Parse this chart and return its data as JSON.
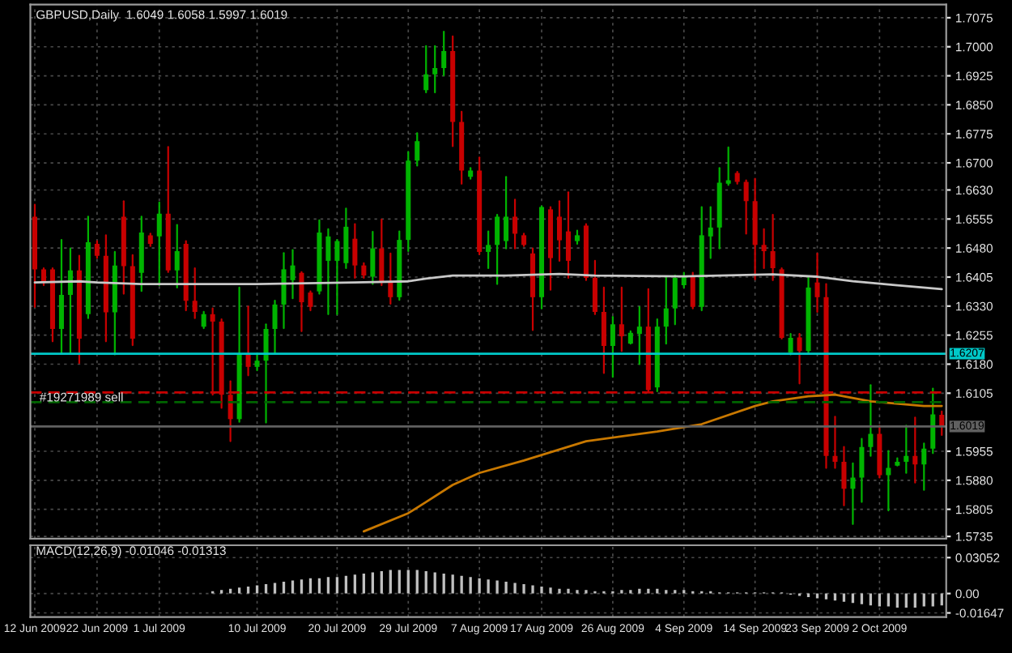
{
  "chart_data": [
    {
      "type": "candlestick",
      "title": "GBPUSD,Daily  1.6049 1.6058 1.5997 1.6019",
      "categories": [
        null,
        null,
        null,
        null,
        null,
        null,
        null,
        null,
        null,
        null,
        null,
        null,
        null,
        null,
        null,
        null,
        null,
        null,
        null,
        null,
        null,
        null,
        null,
        null,
        null,
        null,
        null,
        null,
        null,
        null,
        null,
        null,
        null,
        null,
        null,
        null,
        null,
        null,
        null,
        null,
        null,
        null,
        null,
        null,
        null,
        null,
        null,
        null,
        null,
        null,
        null,
        null,
        null,
        null,
        null,
        null,
        null,
        null,
        null,
        null,
        null,
        null,
        null,
        null,
        null,
        null,
        null,
        null,
        null,
        null,
        null,
        null,
        null,
        null,
        null,
        null,
        null,
        null,
        null,
        null,
        null,
        null,
        null,
        null,
        null,
        null,
        null,
        null,
        null,
        null,
        null,
        null,
        null,
        null,
        null,
        null,
        null,
        null,
        null,
        null,
        null,
        null,
        null
      ],
      "ohlc": [
        [
          1.6561,
          1.6592,
          1.6328,
          1.6425
        ],
        [
          1.6425,
          1.6428,
          1.6384,
          1.6391
        ],
        [
          1.6425,
          1.6428,
          1.6239,
          1.6271
        ],
        [
          1.6271,
          1.6501,
          1.6208,
          1.6359
        ],
        [
          1.6359,
          1.6479,
          1.6208,
          1.6422
        ],
        [
          1.6422,
          1.646,
          1.6183,
          1.6246
        ],
        [
          1.6309,
          1.6561,
          1.6299,
          1.6495
        ],
        [
          1.6491,
          1.6498,
          1.6454,
          1.646
        ],
        [
          1.646,
          1.6513,
          1.6239,
          1.6314
        ],
        [
          1.6314,
          1.647,
          1.6205,
          1.6435
        ],
        [
          1.6561,
          1.6601,
          1.6362,
          1.6433
        ],
        [
          1.6433,
          1.6462,
          1.6229,
          1.6246
        ],
        [
          1.6416,
          1.6561,
          1.6369,
          1.652
        ],
        [
          1.6513,
          1.6517,
          1.6485,
          1.6491
        ],
        [
          1.651,
          1.6598,
          1.6384,
          1.6569
        ],
        [
          1.6569,
          1.6741,
          1.6418,
          1.6422
        ],
        [
          1.6422,
          1.654,
          1.6378,
          1.6472
        ],
        [
          1.6491,
          1.6498,
          1.6319,
          1.6344
        ],
        [
          1.6344,
          1.6428,
          1.6299,
          1.6315
        ],
        [
          1.6277,
          1.6315,
          1.6273,
          1.6309
        ],
        [
          1.6309,
          1.6324,
          1.6101,
          1.629
        ],
        [
          1.629,
          1.6296,
          1.6067,
          1.6101
        ],
        [
          1.6101,
          1.6136,
          1.5981,
          1.6038
        ],
        [
          1.6038,
          1.6378,
          1.6031,
          1.6208
        ],
        [
          1.6208,
          1.6329,
          1.6151,
          1.6173
        ],
        [
          1.6173,
          1.6208,
          1.6164,
          1.6189
        ],
        [
          1.6189,
          1.6283,
          1.6029,
          1.6271
        ],
        [
          1.6271,
          1.6344,
          1.6208,
          1.6334
        ],
        [
          1.6334,
          1.6467,
          1.6273,
          1.6425
        ],
        [
          1.6397,
          1.6475,
          1.635,
          1.6435
        ],
        [
          1.6416,
          1.6418,
          1.6265,
          1.634
        ],
        [
          1.6365,
          1.6368,
          1.6319,
          1.6328
        ],
        [
          1.6368,
          1.6552,
          1.6362,
          1.652
        ],
        [
          1.6447,
          1.6529,
          1.6309,
          1.651
        ],
        [
          1.6447,
          1.6501,
          1.6309,
          1.6498
        ],
        [
          1.6441,
          1.6582,
          1.6428,
          1.6535
        ],
        [
          1.6504,
          1.6542,
          1.6403,
          1.6435
        ],
        [
          1.6435,
          1.6441,
          1.6403,
          1.6409
        ],
        [
          1.6406,
          1.6522,
          1.6387,
          1.6479
        ],
        [
          1.6479,
          1.6554,
          1.6384,
          1.6393
        ],
        [
          1.6393,
          1.6466,
          1.6336,
          1.6353
        ],
        [
          1.6353,
          1.6523,
          1.6346,
          1.6501
        ],
        [
          1.6501,
          1.6728,
          1.6472,
          1.6706
        ],
        [
          1.6706,
          1.6777,
          1.6693,
          1.6756
        ],
        [
          1.6888,
          1.7002,
          1.6882,
          1.6929
        ],
        [
          1.6929,
          1.7002,
          1.6882,
          1.6945
        ],
        [
          1.6945,
          1.7039,
          1.6926,
          1.6989
        ],
        [
          1.6989,
          1.7027,
          1.6743,
          1.6806
        ],
        [
          1.6806,
          1.6832,
          1.6646,
          1.668
        ],
        [
          1.6664,
          1.6687,
          1.6659,
          1.668
        ],
        [
          1.668,
          1.6714,
          1.6464,
          1.647
        ],
        [
          1.647,
          1.6523,
          1.6428,
          1.6488
        ],
        [
          1.6488,
          1.6566,
          1.6387,
          1.6561
        ],
        [
          1.6498,
          1.6664,
          1.6479,
          1.6561
        ],
        [
          1.6561,
          1.6605,
          1.6479,
          1.6517
        ],
        [
          1.6513,
          1.6517,
          1.6485,
          1.6488
        ],
        [
          1.6466,
          1.6479,
          1.6268,
          1.6353
        ],
        [
          1.6353,
          1.6588,
          1.6324,
          1.6586
        ],
        [
          1.658,
          1.6586,
          1.6372,
          1.6454
        ],
        [
          1.6561,
          1.6601,
          1.6447,
          1.65
        ],
        [
          1.6523,
          1.6624,
          1.6403,
          1.6447
        ],
        [
          1.6498,
          1.6525,
          1.6491,
          1.6513
        ],
        [
          1.6538,
          1.6542,
          1.6397,
          1.6403
        ],
        [
          1.6403,
          1.6447,
          1.6309,
          1.6315
        ],
        [
          1.6315,
          1.6378,
          1.6157,
          1.6227
        ],
        [
          1.6227,
          1.6302,
          1.6147,
          1.6283
        ],
        [
          1.6283,
          1.6378,
          1.6214,
          1.6252
        ],
        [
          1.6233,
          1.6265,
          1.6233,
          1.6261
        ],
        [
          1.6258,
          1.6328,
          1.618,
          1.6277
        ],
        [
          1.6277,
          1.6374,
          1.611,
          1.6113
        ],
        [
          1.612,
          1.6296,
          1.611,
          1.6277
        ],
        [
          1.6277,
          1.6407,
          1.6233,
          1.6324
        ],
        [
          1.6324,
          1.6409,
          1.6283,
          1.6403
        ],
        [
          1.6384,
          1.6416,
          1.6378,
          1.6409
        ],
        [
          1.6409,
          1.6416,
          1.6324,
          1.6328
        ],
        [
          1.6328,
          1.6586,
          1.6319,
          1.6513
        ],
        [
          1.651,
          1.6586,
          1.6454,
          1.6533
        ],
        [
          1.6533,
          1.6687,
          1.6479,
          1.6649
        ],
        [
          1.6646,
          1.674,
          1.6643,
          1.6655
        ],
        [
          1.6674,
          1.6677,
          1.6646,
          1.6651
        ],
        [
          1.6651,
          1.6655,
          1.6517,
          1.6601
        ],
        [
          1.6601,
          1.6659,
          1.6399,
          1.6488
        ],
        [
          1.6488,
          1.6529,
          1.6428,
          1.6472
        ],
        [
          1.6472,
          1.6566,
          1.6397,
          1.6428
        ],
        [
          1.6425,
          1.6428,
          1.6246,
          1.6248
        ],
        [
          1.621,
          1.6258,
          1.6205,
          1.6248
        ],
        [
          1.6249,
          1.6258,
          1.613,
          1.6214
        ],
        [
          1.6214,
          1.6403,
          1.621,
          1.6378
        ],
        [
          1.6391,
          1.6466,
          1.6315,
          1.6353
        ],
        [
          1.6353,
          1.6387,
          1.5912,
          1.5943
        ],
        [
          1.5943,
          1.6044,
          1.5912,
          1.5928
        ],
        [
          1.5928,
          1.5966,
          1.5815,
          1.5858
        ],
        [
          1.5858,
          1.5924,
          1.5767,
          1.5887
        ],
        [
          1.5887,
          1.5987,
          1.5824,
          1.5966
        ],
        [
          1.5966,
          1.6126,
          1.5943,
          1.6
        ],
        [
          1.6,
          1.6021,
          1.5887,
          1.5893
        ],
        [
          1.5893,
          1.5956,
          1.5802,
          1.5912
        ],
        [
          1.5918,
          1.5937,
          1.5918,
          1.5928
        ],
        [
          1.5928,
          1.6021,
          1.5899,
          1.5943
        ],
        [
          1.5943,
          1.6042,
          1.5874,
          1.5921
        ],
        [
          1.5921,
          1.5975,
          1.5855,
          1.5962
        ],
        [
          1.5962,
          1.6117,
          1.595,
          1.605
        ],
        [
          1.6049,
          1.6058,
          1.5997,
          1.6019
        ]
      ],
      "colors": [
        "#c80000",
        "#c80000",
        "#c80000",
        "#00b400",
        "#00b400",
        "#c80000",
        "#00b400",
        "#c80000",
        "#c80000",
        "#00b400",
        "#c80000",
        "#c80000",
        "#00b400",
        "#c80000",
        "#00b400",
        "#c80000",
        "#00b400",
        "#c80000",
        "#c80000",
        "#00b400",
        "#c80000",
        "#c80000",
        "#c80000",
        "#00b400",
        "#c80000",
        "#00b400",
        "#00b400",
        "#00b400",
        "#00b400",
        "#00b400",
        "#c80000",
        "#c80000",
        "#00b400",
        "#00b400",
        "#00b400",
        "#00b400",
        "#c80000",
        "#c80000",
        "#00b400",
        "#c80000",
        "#c80000",
        "#00b400",
        "#00b400",
        "#00b400",
        "#00b400",
        "#00b400",
        "#00b400",
        "#c80000",
        "#c80000",
        "#00b400",
        "#c80000",
        "#00b400",
        "#00b400",
        "#00b400",
        "#c80000",
        "#c80000",
        "#c80000",
        "#00b400",
        "#c80000",
        "#c80000",
        "#c80000",
        "#00b400",
        "#c80000",
        "#c80000",
        "#c80000",
        "#00b400",
        "#c80000",
        "#00b400",
        "#00b400",
        "#c80000",
        "#00b400",
        "#00b400",
        "#00b400",
        "#00b400",
        "#c80000",
        "#00b400",
        "#00b400",
        "#00b400",
        "#00b400",
        "#c80000",
        "#c80000",
        "#c80000",
        "#c80000",
        "#c80000",
        "#c80000",
        "#00b400",
        "#c80000",
        "#00b400",
        "#c80000",
        "#c80000",
        "#c80000",
        "#c80000",
        "#00b400",
        "#00b400",
        "#00b400",
        "#c80000",
        "#00b400",
        "#00b400",
        "#00b400",
        "#c80000",
        "#00b400",
        "#00b400",
        "#c80000"
      ],
      "series": [
        {
          "type": "line",
          "color": "#c8c8c8",
          "values": [
            1.6391,
            null,
            null,
            null,
            null,
            1.6394,
            null,
            1.6391,
            null,
            null,
            null,
            null,
            1.6387,
            null,
            null,
            null,
            null,
            null,
            null,
            null,
            null,
            1.6387,
            null,
            null,
            null,
            1.6387,
            null,
            null,
            null,
            null,
            null,
            null,
            null,
            null,
            null,
            null,
            1.6391,
            null,
            null,
            null,
            null,
            null,
            1.6394,
            null,
            1.6401,
            null,
            null,
            1.6409,
            null,
            null,
            null,
            null,
            null,
            1.6409,
            null,
            null,
            null,
            null,
            null,
            1.6413,
            null,
            null,
            null,
            1.6409,
            null,
            null,
            null,
            null,
            null,
            null,
            null,
            null,
            null,
            1.6407,
            null,
            null,
            null,
            null,
            null,
            null,
            null,
            null,
            null,
            1.6412,
            null,
            null,
            null,
            null,
            1.6406,
            null,
            null,
            null,
            1.6394,
            null,
            null,
            null,
            null,
            1.6384,
            null,
            null,
            null,
            null,
            1.6374
          ]
        },
        {
          "type": "line",
          "color": "#c87800",
          "values": [
            null,
            null,
            null,
            null,
            null,
            null,
            null,
            null,
            null,
            null,
            null,
            null,
            null,
            null,
            null,
            null,
            null,
            null,
            null,
            null,
            null,
            null,
            null,
            null,
            null,
            null,
            null,
            null,
            null,
            null,
            null,
            null,
            null,
            null,
            null,
            null,
            null,
            1.5748,
            null,
            null,
            null,
            null,
            1.5795,
            null,
            1.5824,
            null,
            null,
            1.5868,
            null,
            null,
            1.5899,
            null,
            null,
            null,
            null,
            1.5931,
            null,
            null,
            null,
            null,
            null,
            null,
            1.5981,
            null,
            null,
            null,
            null,
            null,
            null,
            null,
            1.6006,
            null,
            null,
            null,
            null,
            1.6025,
            null,
            null,
            null,
            null,
            null,
            1.6072,
            null,
            1.6084,
            null,
            null,
            null,
            1.6097,
            null,
            null,
            1.6101,
            null,
            null,
            null,
            1.6084,
            null,
            null,
            null,
            null,
            null,
            1.6072,
            null,
            1.6072
          ]
        }
      ],
      "ylim": [
        1.5729,
        1.7109
      ],
      "yticks": [
        {
          "value": 1.7075,
          "label": "1.7075"
        },
        {
          "value": 1.7,
          "label": "1.7000"
        },
        {
          "value": 1.6925,
          "label": "1.6925"
        },
        {
          "value": 1.685,
          "label": "1.6850"
        },
        {
          "value": 1.6775,
          "label": "1.6775"
        },
        {
          "value": 1.67,
          "label": "1.6700"
        },
        {
          "value": 1.663,
          "label": "1.6630"
        },
        {
          "value": 1.6555,
          "label": "1.6555"
        },
        {
          "value": 1.648,
          "label": "1.6480"
        },
        {
          "value": 1.6405,
          "label": "1.6405"
        },
        {
          "value": 1.633,
          "label": "1.6330"
        },
        {
          "value": 1.6255,
          "label": "1.6255"
        },
        {
          "value": 1.618,
          "label": "1.6180"
        },
        {
          "value": 1.6105,
          "label": "1.6105"
        },
        {
          "value": 1.5955,
          "label": "1.5955"
        },
        {
          "value": 1.588,
          "label": "1.5880"
        },
        {
          "value": 1.5805,
          "label": "1.5805"
        },
        {
          "value": 1.5735,
          "label": "1.5735"
        }
      ],
      "ref_lines": [
        {
          "axis": "y",
          "value": 1.6207,
          "label": "1.6207",
          "color": "#00c8c8",
          "line_style": "solid"
        },
        {
          "axis": "y",
          "value": 1.6107,
          "label": "#19271989 sell",
          "color": "#c80000",
          "line_style": "dashed"
        },
        {
          "axis": "y",
          "value": 1.6082,
          "color": "#006400",
          "line_style": "dashed"
        },
        {
          "axis": "y",
          "value": 1.6019,
          "label": "1.6019",
          "color": "#606060",
          "line_style": "solid"
        }
      ],
      "grid": true,
      "tick_labels": "y"
    },
    {
      "type": "bar",
      "title": "MACD(12,26,9) -0.01046 -0.01313",
      "color": "#c0c0c0",
      "categories": [
        "12 Jun 2009",
        null,
        null,
        null,
        null,
        null,
        null,
        "22 Jun 2009",
        null,
        null,
        null,
        null,
        null,
        null,
        "1 Jul 2009",
        null,
        null,
        null,
        null,
        null,
        null,
        null,
        null,
        null,
        null,
        "10 Jul 2009",
        null,
        null,
        null,
        null,
        null,
        null,
        null,
        null,
        "20 Jul 2009",
        null,
        null,
        null,
        null,
        null,
        null,
        null,
        "29 Jul 2009",
        null,
        null,
        null,
        null,
        null,
        null,
        null,
        "7 Aug 2009",
        null,
        null,
        null,
        null,
        null,
        null,
        "17 Aug 2009",
        null,
        null,
        null,
        null,
        null,
        null,
        null,
        "26 Aug 2009",
        null,
        null,
        null,
        null,
        null,
        null,
        null,
        "4 Sep 2009",
        null,
        null,
        null,
        null,
        null,
        null,
        null,
        "14 Sep 2009",
        null,
        null,
        null,
        null,
        null,
        null,
        "23 Sep 2009",
        null,
        null,
        null,
        null,
        null,
        null,
        "2 Oct 2009",
        null,
        null,
        null,
        null,
        null,
        null,
        null
      ],
      "values": [
        null,
        null,
        null,
        null,
        null,
        null,
        null,
        null,
        null,
        null,
        null,
        null,
        null,
        null,
        null,
        null,
        null,
        null,
        null,
        null,
        0.002,
        0.003,
        0.004,
        0.005,
        0.006,
        0.007,
        0.008,
        0.009,
        0.01,
        0.011,
        0.012,
        0.013,
        0.013,
        0.014,
        0.014,
        0.015,
        0.016,
        0.017,
        0.018,
        0.019,
        0.02,
        0.02,
        0.02,
        0.02,
        0.019,
        0.018,
        0.017,
        0.016,
        0.015,
        0.014,
        0.013,
        0.012,
        0.011,
        0.01,
        0.009,
        0.008,
        0.007,
        0.006,
        0.005,
        0.004,
        0.004,
        0.003,
        0.003,
        0.002,
        0.002,
        0.002,
        0.003,
        0.003,
        0.004,
        0.004,
        0.004,
        0.003,
        0.003,
        0.003,
        0.002,
        0.002,
        0.002,
        0.001,
        0.001,
        0.001,
        0.001,
        0.001,
        0.001,
        0.001,
        0.001,
        -0.001,
        -0.002,
        -0.003,
        -0.004,
        -0.005,
        -0.006,
        -0.007,
        -0.008,
        -0.009,
        -0.01,
        -0.011,
        -0.011,
        -0.012,
        -0.012,
        -0.012,
        -0.011,
        -0.011,
        -0.01
      ],
      "ylim": [
        -0.02,
        0.041
      ],
      "yticks": [
        {
          "value": 0.03052,
          "label": "0.03052"
        },
        {
          "value": 0,
          "label": "0.00"
        },
        {
          "value": -0.01647,
          "label": "-0.01647"
        }
      ],
      "grid": true
    }
  ]
}
